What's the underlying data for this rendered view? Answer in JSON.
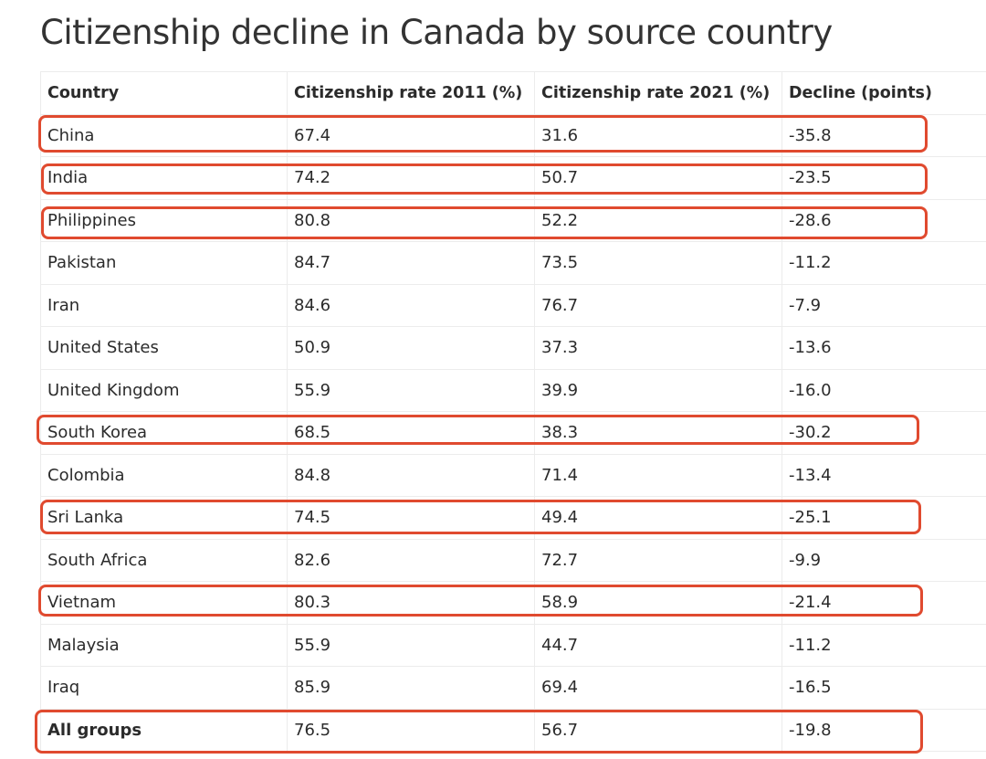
{
  "title": "Citizenship decline in Canada by source country",
  "headers": [
    "Country",
    "Citizenship rate 2011 (%)",
    "Citizenship rate 2021 (%)",
    "Decline (points)"
  ],
  "rows": [
    {
      "country": "China",
      "rate2011": "67.4",
      "rate2021": "31.6",
      "decline": "-35.8",
      "highlighted": true
    },
    {
      "country": "India",
      "rate2011": "74.2",
      "rate2021": "50.7",
      "decline": "-23.5",
      "highlighted": true
    },
    {
      "country": "Philippines",
      "rate2011": "80.8",
      "rate2021": "52.2",
      "decline": "-28.6",
      "highlighted": true
    },
    {
      "country": "Pakistan",
      "rate2011": "84.7",
      "rate2021": "73.5",
      "decline": "-11.2",
      "highlighted": false
    },
    {
      "country": "Iran",
      "rate2011": "84.6",
      "rate2021": "76.7",
      "decline": "-7.9",
      "highlighted": false
    },
    {
      "country": "United States",
      "rate2011": "50.9",
      "rate2021": "37.3",
      "decline": "-13.6",
      "highlighted": false
    },
    {
      "country": "United Kingdom",
      "rate2011": "55.9",
      "rate2021": "39.9",
      "decline": "-16.0",
      "highlighted": false
    },
    {
      "country": "South Korea",
      "rate2011": "68.5",
      "rate2021": "38.3",
      "decline": "-30.2",
      "highlighted": true
    },
    {
      "country": "Colombia",
      "rate2011": "84.8",
      "rate2021": "71.4",
      "decline": "-13.4",
      "highlighted": false
    },
    {
      "country": "Sri Lanka",
      "rate2011": "74.5",
      "rate2021": "49.4",
      "decline": "-25.1",
      "highlighted": true
    },
    {
      "country": "South Africa",
      "rate2011": "82.6",
      "rate2021": "72.7",
      "decline": "-9.9",
      "highlighted": false
    },
    {
      "country": "Vietnam",
      "rate2011": "80.3",
      "rate2021": "58.9",
      "decline": "-21.4",
      "highlighted": true
    },
    {
      "country": "Malaysia",
      "rate2011": "55.9",
      "rate2021": "44.7",
      "decline": "-11.2",
      "highlighted": false
    },
    {
      "country": "Iraq",
      "rate2011": "85.9",
      "rate2021": "69.4",
      "decline": "-16.5",
      "highlighted": false
    },
    {
      "country": "All groups",
      "rate2011": "76.5",
      "rate2021": "56.7",
      "decline": "-19.8",
      "highlighted": true
    }
  ],
  "highlight_color": "#e04a2f"
}
